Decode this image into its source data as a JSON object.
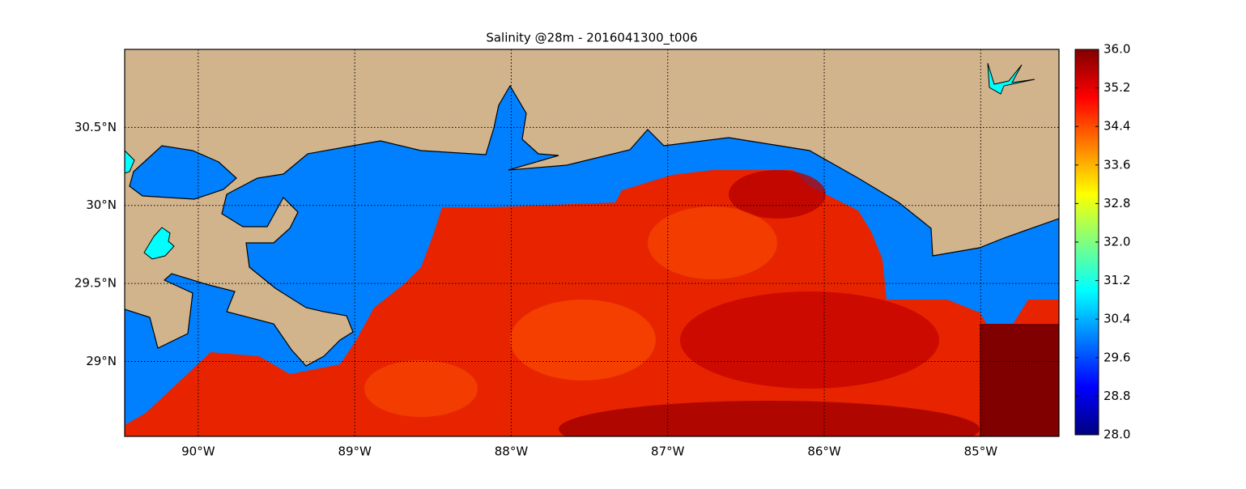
{
  "chart_data": {
    "type": "map",
    "title": "Salinity @28m - 2016041300_t006",
    "xlim": [
      -90.47,
      -84.5
    ],
    "ylim": [
      28.52,
      31.0
    ],
    "xticks": [
      {
        "value": -90,
        "label": "90°W"
      },
      {
        "value": -89,
        "label": "89°W"
      },
      {
        "value": -88,
        "label": "88°W"
      },
      {
        "value": -87,
        "label": "87°W"
      },
      {
        "value": -86,
        "label": "86°W"
      },
      {
        "value": -85,
        "label": "85°W"
      }
    ],
    "yticks": [
      {
        "value": 29,
        "label": "29°N"
      },
      {
        "value": 29.5,
        "label": "29.5°N"
      },
      {
        "value": 30,
        "label": "30°N"
      },
      {
        "value": 30.5,
        "label": "30.5°N"
      }
    ],
    "grid": true,
    "colorbar": {
      "colormap": "jet",
      "clim": [
        28,
        36
      ],
      "ticks": [
        {
          "value": 28,
          "label": "28.0"
        },
        {
          "value": 28.8,
          "label": "28.8"
        },
        {
          "value": 29.6,
          "label": "29.6"
        },
        {
          "value": 30.4,
          "label": "30.4"
        },
        {
          "value": 31.2,
          "label": "31.2"
        },
        {
          "value": 32,
          "label": "32.0"
        },
        {
          "value": 32.8,
          "label": "32.8"
        },
        {
          "value": 33.6,
          "label": "33.6"
        },
        {
          "value": 34.4,
          "label": "34.4"
        },
        {
          "value": 35.2,
          "label": "35.2"
        },
        {
          "value": 36,
          "label": "36.0"
        }
      ]
    }
  }
}
